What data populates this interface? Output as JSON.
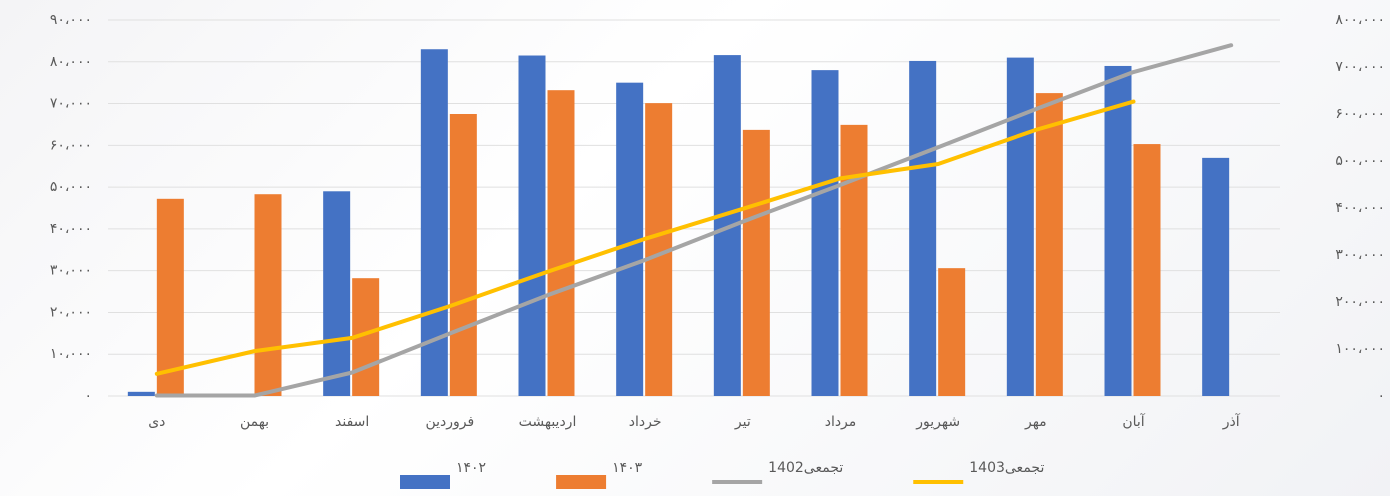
{
  "chart_data": {
    "type": "combo",
    "categories": [
      "دی",
      "بهمن",
      "اسفند",
      "فروردین",
      "اردیبهشت",
      "خرداد",
      "تیر",
      "مرداد",
      "شهریور",
      "مهر",
      "آبان",
      "آذر"
    ],
    "series": [
      {
        "name": "۱۴۰۲",
        "type": "bar",
        "color": "#4472c4",
        "values": [
          1000,
          null,
          49000,
          83000,
          81500,
          75000,
          81600,
          78000,
          80200,
          81000,
          79000,
          57000
        ]
      },
      {
        "name": "۱۴۰۳",
        "type": "bar",
        "color": "#ed7d31",
        "values": [
          47200,
          48300,
          28200,
          67500,
          73200,
          70100,
          63700,
          64900,
          30600,
          72500,
          60300,
          null
        ]
      },
      {
        "name": "تجمعی1402",
        "type": "line",
        "axis": "y2",
        "color": "#a5a5a5",
        "values": [
          1000,
          1000,
          50000,
          133000,
          214500,
          289500,
          371100,
          449100,
          529300,
          610300,
          689300,
          746300
        ]
      },
      {
        "name": "تجمعی1403",
        "type": "line",
        "axis": "y2",
        "color": "#ffc000",
        "values": [
          47200,
          95500,
          123700,
          191200,
          264400,
          334500,
          398200,
          463100,
          493700,
          566200,
          626500,
          null
        ]
      }
    ],
    "ylim": [
      0,
      90000
    ],
    "yticks": [
      {
        "value": 0,
        "label": "۰"
      },
      {
        "value": 10000,
        "label": "۱۰،۰۰۰"
      },
      {
        "value": 20000,
        "label": "۲۰،۰۰۰"
      },
      {
        "value": 30000,
        "label": "۳۰،۰۰۰"
      },
      {
        "value": 40000,
        "label": "۴۰،۰۰۰"
      },
      {
        "value": 50000,
        "label": "۵۰،۰۰۰"
      },
      {
        "value": 60000,
        "label": "۶۰،۰۰۰"
      },
      {
        "value": 70000,
        "label": "۷۰،۰۰۰"
      },
      {
        "value": 80000,
        "label": "۸۰،۰۰۰"
      },
      {
        "value": 90000,
        "label": "۹۰،۰۰۰"
      }
    ],
    "y2lim": [
      0,
      800000
    ],
    "y2ticks": [
      {
        "value": 0,
        "label": "۰"
      },
      {
        "value": 100000,
        "label": "۱۰۰،۰۰۰"
      },
      {
        "value": 200000,
        "label": "۲۰۰،۰۰۰"
      },
      {
        "value": 300000,
        "label": "۳۰۰،۰۰۰"
      },
      {
        "value": 400000,
        "label": "۴۰۰،۰۰۰"
      },
      {
        "value": 500000,
        "label": "۵۰۰،۰۰۰"
      },
      {
        "value": 600000,
        "label": "۶۰۰،۰۰۰"
      },
      {
        "value": 700000,
        "label": "۷۰۰،۰۰۰"
      },
      {
        "value": 800000,
        "label": "۸۰۰،۰۰۰"
      }
    ],
    "grid": true,
    "legend": "bottom"
  }
}
